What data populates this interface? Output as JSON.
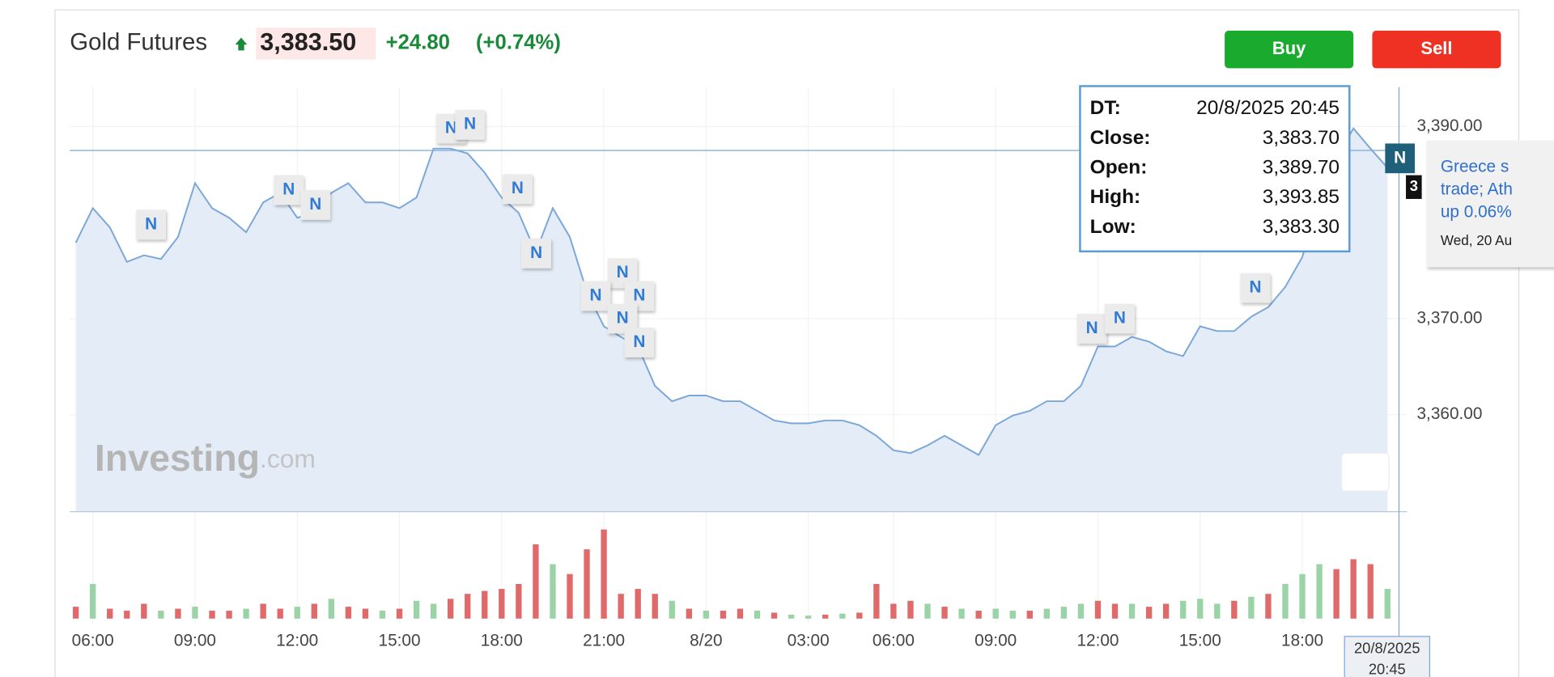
{
  "header": {
    "name": "Gold Futures",
    "price": "3,383.50",
    "change": "+24.80",
    "change_pct": "(+0.74%)"
  },
  "buttons": {
    "buy": "Buy",
    "sell": "Sell"
  },
  "watermark": {
    "brand": "Investing",
    "suffix": ".com"
  },
  "tooltip": {
    "rows": [
      {
        "label": "DT:",
        "value": "20/8/2025 20:45"
      },
      {
        "label": "Close:",
        "value": "3,383.70"
      },
      {
        "label": "Open:",
        "value": "3,389.70"
      },
      {
        "label": "High:",
        "value": "3,393.85"
      },
      {
        "label": "Low:",
        "value": "3,383.30"
      }
    ]
  },
  "news_popup": {
    "lines": [
      "Greece s",
      "trade; Ath",
      "up 0.06%"
    ],
    "date": "Wed, 20 Au"
  },
  "last_marker": {
    "news": "N",
    "price": "3"
  },
  "crosshair_label": {
    "date": "20/8/2025",
    "time": "20:45"
  },
  "chart_data": [
    {
      "type": "area",
      "categories": [
        null,
        "06:00",
        null,
        null,
        null,
        null,
        null,
        "09:00",
        null,
        null,
        null,
        null,
        null,
        "12:00",
        null,
        null,
        null,
        null,
        null,
        "15:00",
        null,
        null,
        null,
        null,
        null,
        "18:00",
        null,
        null,
        null,
        null,
        null,
        "21:00",
        null,
        null,
        null,
        null,
        null,
        "8/20",
        null,
        null,
        null,
        null,
        null,
        "03:00",
        null,
        null,
        null,
        null,
        "06:00",
        null,
        null,
        null,
        null,
        null,
        "09:00",
        null,
        null,
        null,
        null,
        null,
        "12:00",
        null,
        null,
        null,
        null,
        null,
        "15:00",
        null,
        null,
        null,
        null,
        null,
        "18:00",
        null,
        null,
        null,
        null,
        null
      ],
      "values": [
        3377.9,
        3381.5,
        3379.5,
        3375.9,
        3376.6,
        3376.2,
        3378.5,
        3384.1,
        3381.5,
        3380.5,
        3379.0,
        3382.1,
        3383.1,
        3380.5,
        3381.0,
        3383.1,
        3384.1,
        3382.1,
        3382.1,
        3381.5,
        3382.6,
        3387.7,
        3387.7,
        3387.2,
        3385.2,
        3382.6,
        3381.0,
        3376.9,
        3381.5,
        3378.5,
        3372.8,
        3369.2,
        3368.1,
        3367.1,
        3363.0,
        3361.4,
        3362.0,
        3362.0,
        3361.4,
        3361.4,
        3360.4,
        3359.4,
        3359.1,
        3359.1,
        3359.4,
        3359.4,
        3358.9,
        3357.8,
        3356.3,
        3356.0,
        3356.8,
        3357.8,
        3356.8,
        3355.8,
        3358.9,
        3359.9,
        3360.4,
        3361.4,
        3361.4,
        3363.0,
        3367.1,
        3367.1,
        3368.1,
        3367.6,
        3366.6,
        3366.1,
        3369.2,
        3368.7,
        3368.7,
        3370.2,
        3371.2,
        3373.3,
        3376.4,
        3382.6,
        3386.7,
        3389.8,
        3387.7,
        3385.7
      ],
      "color": "#7aa7d8",
      "fill": "#e4edf7",
      "ylim": [
        3349.9,
        3394.1
      ],
      "yticks": [
        {
          "value": 3360,
          "label": "3,360.00"
        },
        {
          "value": 3370,
          "label": "3,370.00"
        },
        {
          "value": 3390,
          "label": "3,390.00"
        }
      ],
      "grid": true,
      "annotations": [
        "N",
        "N",
        "N",
        "N",
        "N",
        "N",
        "N",
        "N",
        "N",
        "N",
        "N",
        "N",
        "N",
        "N",
        "N"
      ]
    },
    {
      "type": "bar",
      "values": [
        12,
        35,
        10,
        8,
        15,
        8,
        10,
        12,
        8,
        8,
        10,
        15,
        10,
        12,
        15,
        20,
        12,
        10,
        8,
        10,
        18,
        15,
        20,
        25,
        28,
        30,
        35,
        75,
        55,
        45,
        70,
        90,
        25,
        30,
        25,
        18,
        10,
        8,
        8,
        10,
        8,
        6,
        4,
        3,
        4,
        5,
        6,
        35,
        15,
        18,
        15,
        12,
        10,
        8,
        10,
        8,
        8,
        10,
        12,
        15,
        18,
        15,
        15,
        12,
        15,
        18,
        20,
        15,
        18,
        22,
        25,
        35,
        45,
        55,
        50,
        60,
        55,
        30
      ],
      "bar_colors": [
        "#e06a6a",
        "#9ad4a6",
        "#e06a6a",
        "#e06a6a",
        "#e06a6a",
        "#9ad4a6",
        "#e06a6a",
        "#9ad4a6",
        "#e06a6a",
        "#e06a6a",
        "#9ad4a6",
        "#e06a6a",
        "#e06a6a",
        "#9ad4a6",
        "#e06a6a",
        "#9ad4a6",
        "#e06a6a",
        "#e06a6a",
        "#9ad4a6",
        "#e06a6a",
        "#9ad4a6",
        "#9ad4a6",
        "#e06a6a",
        "#e06a6a",
        "#e06a6a",
        "#e06a6a",
        "#e06a6a",
        "#e06a6a",
        "#9ad4a6",
        "#e06a6a",
        "#e06a6a",
        "#e06a6a",
        "#e06a6a",
        "#e06a6a",
        "#e06a6a",
        "#9ad4a6",
        "#e06a6a",
        "#9ad4a6",
        "#e06a6a",
        "#e06a6a",
        "#9ad4a6",
        "#e06a6a",
        "#9ad4a6",
        "#9ad4a6",
        "#e06a6a",
        "#9ad4a6",
        "#e06a6a",
        "#e06a6a",
        "#e06a6a",
        "#e06a6a",
        "#9ad4a6",
        "#e06a6a",
        "#9ad4a6",
        "#e06a6a",
        "#9ad4a6",
        "#9ad4a6",
        "#e06a6a",
        "#9ad4a6",
        "#9ad4a6",
        "#9ad4a6",
        "#e06a6a",
        "#e06a6a",
        "#9ad4a6",
        "#e06a6a",
        "#e06a6a",
        "#9ad4a6",
        "#9ad4a6",
        "#9ad4a6",
        "#e06a6a",
        "#9ad4a6",
        "#e06a6a",
        "#9ad4a6",
        "#9ad4a6",
        "#9ad4a6",
        "#e06a6a",
        "#e06a6a",
        "#e06a6a",
        "#9ad4a6"
      ]
    }
  ]
}
